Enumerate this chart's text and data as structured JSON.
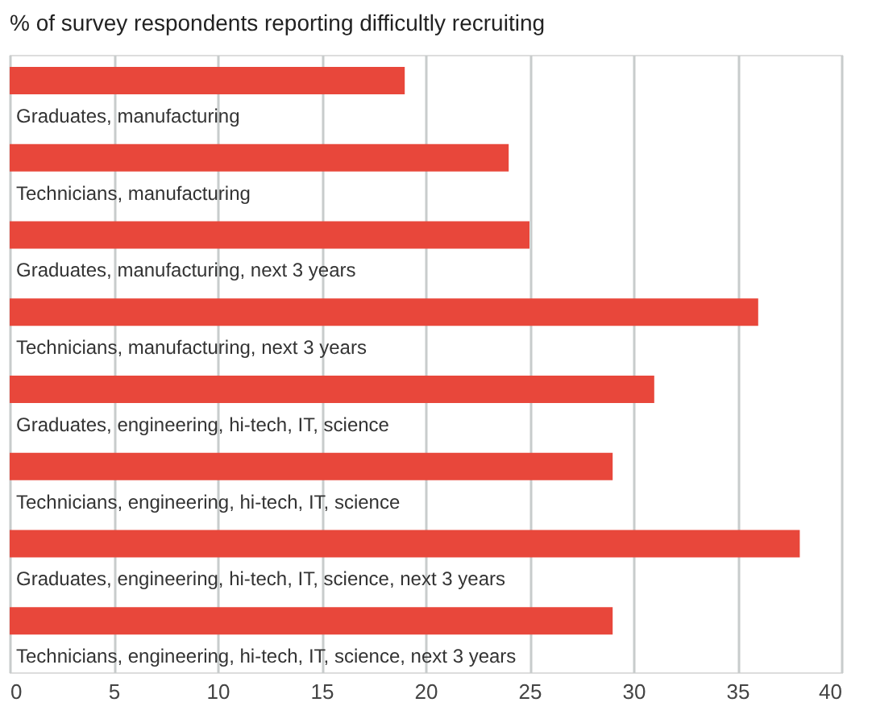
{
  "chart_data": {
    "type": "bar",
    "orientation": "horizontal",
    "title": "% of survey respondents reporting difficultly recruiting",
    "categories": [
      "Graduates, manufacturing",
      "Technicians, manufacturing",
      "Graduates, manufacturing, next 3 years",
      "Technicians, manufacturing, next 3 years",
      "Graduates, engineering, hi-tech, IT, science",
      "Technicians, engineering, hi-tech, IT, science",
      "Graduates, engineering, hi-tech, IT, science, next 3 years",
      "Technicians, engineering, hi-tech, IT, science, next 3 years"
    ],
    "values": [
      19,
      24,
      25,
      36,
      31,
      29,
      38,
      29
    ],
    "color": "#e8473b",
    "xlim": [
      0,
      40
    ],
    "xticks": [
      0,
      5,
      10,
      15,
      20,
      25,
      30,
      35,
      40
    ],
    "grid": "x"
  }
}
